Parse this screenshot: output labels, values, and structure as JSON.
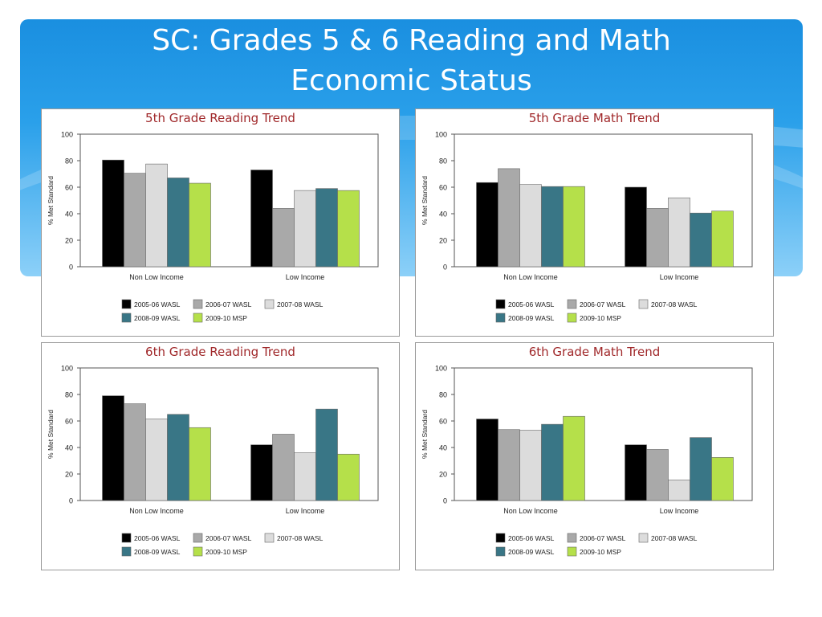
{
  "slide": {
    "title_line1": "SC:  Grades 5 & 6 Reading and Math",
    "title_line2": "Economic Status"
  },
  "legend": [
    {
      "name": "2005-06 WASL",
      "color": "#000000"
    },
    {
      "name": "2006-07 WASL",
      "color": "#a9a9a9"
    },
    {
      "name": "2007-08 WASL",
      "color": "#dcdcdc"
    },
    {
      "name": "2008-09 WASL",
      "color": "#397686"
    },
    {
      "name": "2009-10 MSP",
      "color": "#b5e04a"
    }
  ],
  "chart_data": [
    {
      "type": "bar",
      "title": "5th Grade Reading Trend",
      "ylabel": "% Met Standard",
      "ylim": [
        0,
        100
      ],
      "yticks": [
        0,
        20,
        40,
        60,
        80,
        100
      ],
      "categories": [
        "Non Low Income",
        "Low Income"
      ],
      "series": [
        {
          "name": "2005-06 WASL",
          "values": [
            80.5,
            73
          ]
        },
        {
          "name": "2006-07 WASL",
          "values": [
            70.5,
            44
          ]
        },
        {
          "name": "2007-08 WASL",
          "values": [
            77.5,
            57.5
          ]
        },
        {
          "name": "2008-09 WASL",
          "values": [
            67,
            59
          ]
        },
        {
          "name": "2009-10 MSP",
          "values": [
            63,
            57.5
          ]
        }
      ]
    },
    {
      "type": "bar",
      "title": "5th Grade Math Trend",
      "ylabel": "% Met Standard",
      "ylim": [
        0,
        100
      ],
      "yticks": [
        0,
        20,
        40,
        60,
        80,
        100
      ],
      "categories": [
        "Non Low Income",
        "Low Income"
      ],
      "series": [
        {
          "name": "2005-06 WASL",
          "values": [
            63.5,
            60
          ]
        },
        {
          "name": "2006-07 WASL",
          "values": [
            74,
            44
          ]
        },
        {
          "name": "2007-08 WASL",
          "values": [
            62,
            52
          ]
        },
        {
          "name": "2008-09 WASL",
          "values": [
            60.5,
            40.5
          ]
        },
        {
          "name": "2009-10 MSP",
          "values": [
            60.5,
            42
          ]
        }
      ]
    },
    {
      "type": "bar",
      "title": "6th Grade Reading Trend",
      "ylabel": "% Met Standard",
      "ylim": [
        0,
        100
      ],
      "yticks": [
        0,
        20,
        40,
        60,
        80,
        100
      ],
      "categories": [
        "Non Low Income",
        "Low Income"
      ],
      "series": [
        {
          "name": "2005-06 WASL",
          "values": [
            79,
            42
          ]
        },
        {
          "name": "2006-07 WASL",
          "values": [
            73,
            50
          ]
        },
        {
          "name": "2007-08 WASL",
          "values": [
            61.5,
            36
          ]
        },
        {
          "name": "2008-09 WASL",
          "values": [
            65,
            69
          ]
        },
        {
          "name": "2009-10 MSP",
          "values": [
            55,
            35
          ]
        }
      ]
    },
    {
      "type": "bar",
      "title": "6th Grade Math Trend",
      "ylabel": "% Met Standard",
      "ylim": [
        0,
        100
      ],
      "yticks": [
        0,
        20,
        40,
        60,
        80,
        100
      ],
      "categories": [
        "Non Low Income",
        "Low Income"
      ],
      "series": [
        {
          "name": "2005-06 WASL",
          "values": [
            61.5,
            42
          ]
        },
        {
          "name": "2006-07 WASL",
          "values": [
            53.5,
            38.5
          ]
        },
        {
          "name": "2007-08 WASL",
          "values": [
            53,
            15.5
          ]
        },
        {
          "name": "2008-09 WASL",
          "values": [
            57.5,
            47.5
          ]
        },
        {
          "name": "2009-10 MSP",
          "values": [
            63.5,
            32.5
          ]
        }
      ]
    }
  ]
}
